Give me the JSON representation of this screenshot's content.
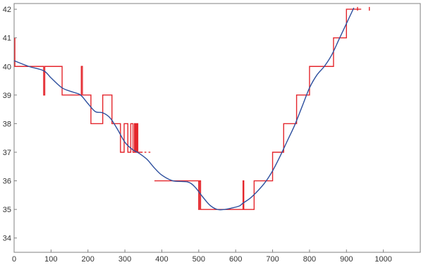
{
  "chart_data": {
    "type": "line",
    "title": "",
    "xlabel": "",
    "ylabel": "",
    "xlim": [
      0,
      1100
    ],
    "ylim": [
      33.5,
      42.2
    ],
    "grid": false,
    "x_ticks": [
      0,
      100,
      200,
      300,
      400,
      500,
      600,
      700,
      800,
      900,
      1000
    ],
    "y_ticks": [
      34,
      35,
      36,
      37,
      38,
      39,
      40,
      41,
      42
    ],
    "x_tick_labels": [
      "0",
      "100",
      "200",
      "300",
      "400",
      "500",
      "600",
      "700",
      "800",
      "900",
      "1000"
    ],
    "y_tick_labels": [
      "34",
      "35",
      "36",
      "37",
      "38",
      "39",
      "40",
      "41",
      "42"
    ],
    "series": [
      {
        "color": "#e4262c",
        "step": true,
        "segments": [
          {
            "x": [
              2,
              2,
              2,
              80,
              80,
              83,
              83,
              86,
              86,
              130,
              130,
              182,
              182,
              185,
              185,
              188,
              188,
              208,
              208,
              240,
              240,
              265,
              265,
              288,
              288,
              298,
              298,
              308,
              308,
              316,
              316,
              322,
              322,
              326,
              326,
              327,
              327,
              329,
              329,
              331,
              331,
              333,
              333,
              335,
              335,
              337,
              337,
              348
            ],
            "y": [
              41,
              40,
              40,
              40,
              39,
              39,
              40,
              40,
              40,
              40,
              39,
              39,
              40,
              40,
              39,
              39,
              39,
              39,
              38,
              38,
              39,
              39,
              38,
              38,
              37,
              37,
              38,
              38,
              37,
              37,
              38,
              38,
              37,
              37,
              38,
              38,
              37,
              37,
              38,
              38,
              37,
              37,
              38,
              38,
              37,
              37,
              37,
              37
            ]
          },
          {
            "x": [
              353,
              358
            ],
            "y": [
              37,
              37
            ]
          },
          {
            "x": [
              364,
              369
            ],
            "y": [
              37,
              37
            ]
          },
          {
            "x": [
              380,
              500,
              500,
              502,
              502,
              505,
              505,
              620,
              620,
              622,
              622,
              625,
              625,
              650,
              650,
              700,
              700,
              730,
              730,
              765,
              765,
              800,
              800,
              865,
              865,
              900,
              900,
              940
            ],
            "y": [
              36,
              36,
              35,
              35,
              36,
              36,
              35,
              35,
              36,
              36,
              35,
              35,
              35,
              35,
              36,
              36,
              37,
              37,
              38,
              38,
              39,
              39,
              40,
              40,
              41,
              41,
              42,
              42
            ]
          },
          {
            "x": [
              930,
              930
            ],
            "y": [
              41.95,
              42.08
            ]
          },
          {
            "x": [
              962,
              962
            ],
            "y": [
              41.95,
              42.08
            ]
          }
        ]
      },
      {
        "color": "#2d4f9e",
        "step": false,
        "x": [
          0,
          40,
          80,
          100,
          130,
          160,
          180,
          200,
          220,
          240,
          260,
          280,
          300,
          320,
          340,
          360,
          380,
          400,
          430,
          470,
          490,
          510,
          530,
          550,
          570,
          590,
          610,
          620,
          640,
          660,
          680,
          700,
          720,
          740,
          760,
          780,
          800,
          820,
          840,
          860,
          880,
          900,
          920
        ],
        "y": [
          40.2,
          40.0,
          39.85,
          39.6,
          39.25,
          39.1,
          39.0,
          38.7,
          38.42,
          38.38,
          38.2,
          37.8,
          37.35,
          37.1,
          36.95,
          36.75,
          36.45,
          36.2,
          36.0,
          35.96,
          35.78,
          35.45,
          35.15,
          35.0,
          35.0,
          35.05,
          35.12,
          35.22,
          35.4,
          35.65,
          35.95,
          36.35,
          36.85,
          37.4,
          37.95,
          38.6,
          39.25,
          39.7,
          40.0,
          40.4,
          40.95,
          41.5,
          42.05
        ]
      }
    ]
  }
}
